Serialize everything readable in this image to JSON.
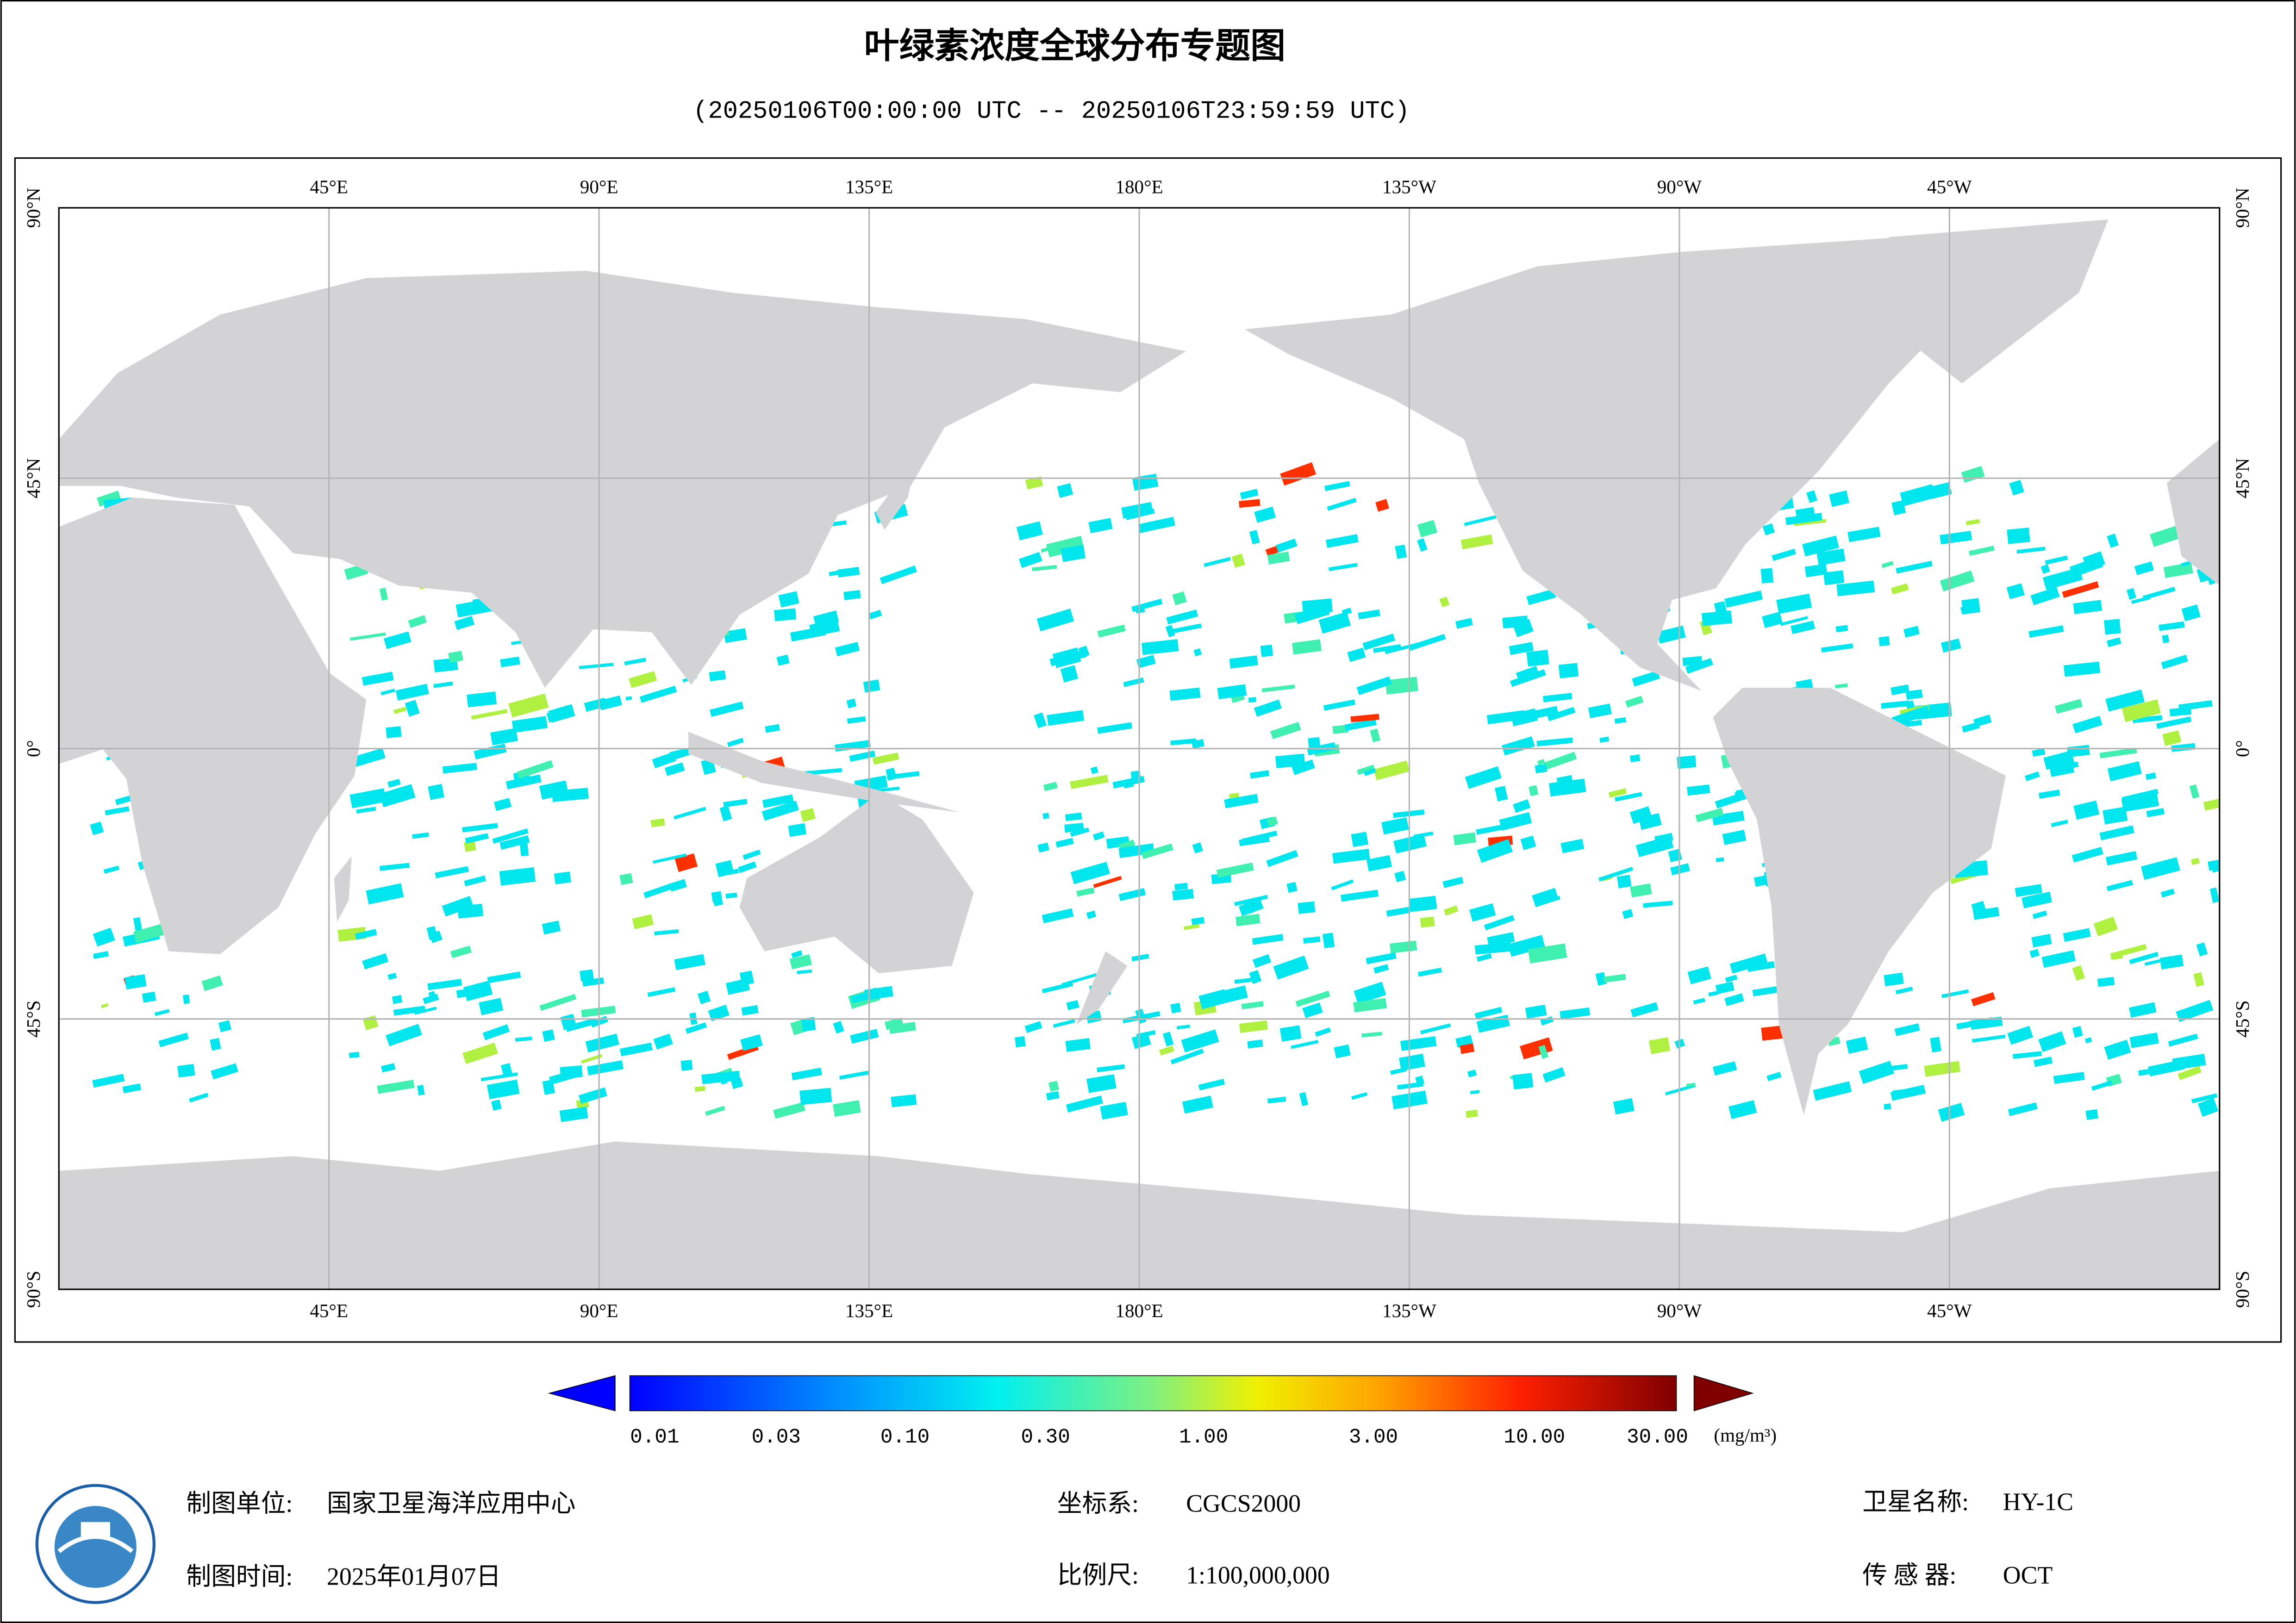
{
  "title": "叶绿素浓度全球分布专题图",
  "subtitle": "(20250106T00:00:00 UTC -- 20250106T23:59:59 UTC)",
  "map": {
    "lon_labels": [
      "45°E",
      "90°E",
      "135°E",
      "180°E",
      "135°W",
      "90°W",
      "45°W"
    ],
    "lat_labels": [
      "90°N",
      "45°N",
      "0°",
      "45°S",
      "90°S"
    ]
  },
  "colorbar": {
    "labels": [
      "0.01",
      "0.03",
      "0.10",
      "0.30",
      "1.00",
      "3.00",
      "10.00",
      "30.00"
    ],
    "unit": "(mg/m³)"
  },
  "footer": {
    "unit_label": "制图单位:",
    "unit_value": "国家卫星海洋应用中心",
    "time_label": "制图时间:",
    "time_value": "2025年01月07日",
    "crs_label": "坐标系:",
    "crs_value": "CGCS2000",
    "scale_label": "比例尺:",
    "scale_value": "1:100,000,000",
    "sat_label": "卫星名称:",
    "sat_value": "HY-1C",
    "sensor_label": "传 感 器:",
    "sensor_value": "OCT"
  }
}
